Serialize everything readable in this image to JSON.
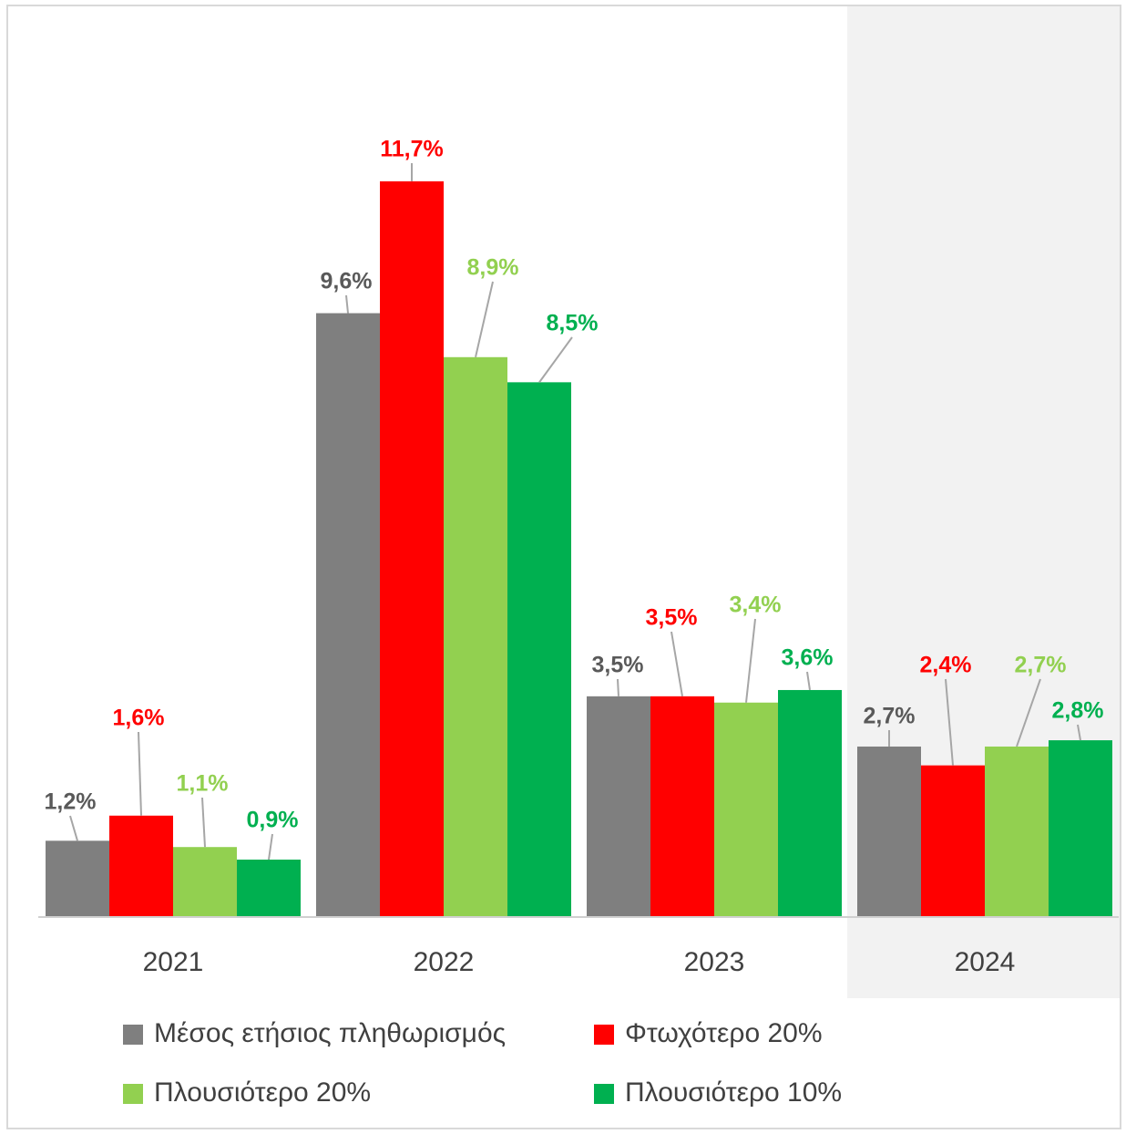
{
  "chart_data": {
    "type": "bar",
    "categories": [
      "2021",
      "2022",
      "2023",
      "2024"
    ],
    "series": [
      {
        "name": "Μέσος ετήσιος πληθωρισμός",
        "color": "#7f7f7f",
        "values": [
          1.2,
          9.6,
          3.5,
          2.7
        ],
        "value_labels": [
          "1,2%",
          "9,6%",
          "3,5%",
          "2,7%"
        ]
      },
      {
        "name": "Φτωχότερο 20%",
        "color": "#ff0000",
        "values": [
          1.6,
          11.7,
          3.5,
          2.4
        ],
        "value_labels": [
          "1,6%",
          "11,7%",
          "3,5%",
          "2,4%"
        ]
      },
      {
        "name": "Πλουσιότερο 20%",
        "color": "#92d050",
        "values": [
          1.1,
          8.9,
          3.4,
          2.7
        ],
        "value_labels": [
          "1,1%",
          "8,9%",
          "3,4%",
          "2,7%"
        ]
      },
      {
        "name": "Πλουσιότερο 10%",
        "color": "#00b050",
        "values": [
          0.9,
          8.5,
          3.6,
          2.8
        ],
        "value_labels": [
          "0,9%",
          "8,5%",
          "3,6%",
          "2,8%"
        ]
      }
    ]
  }
}
